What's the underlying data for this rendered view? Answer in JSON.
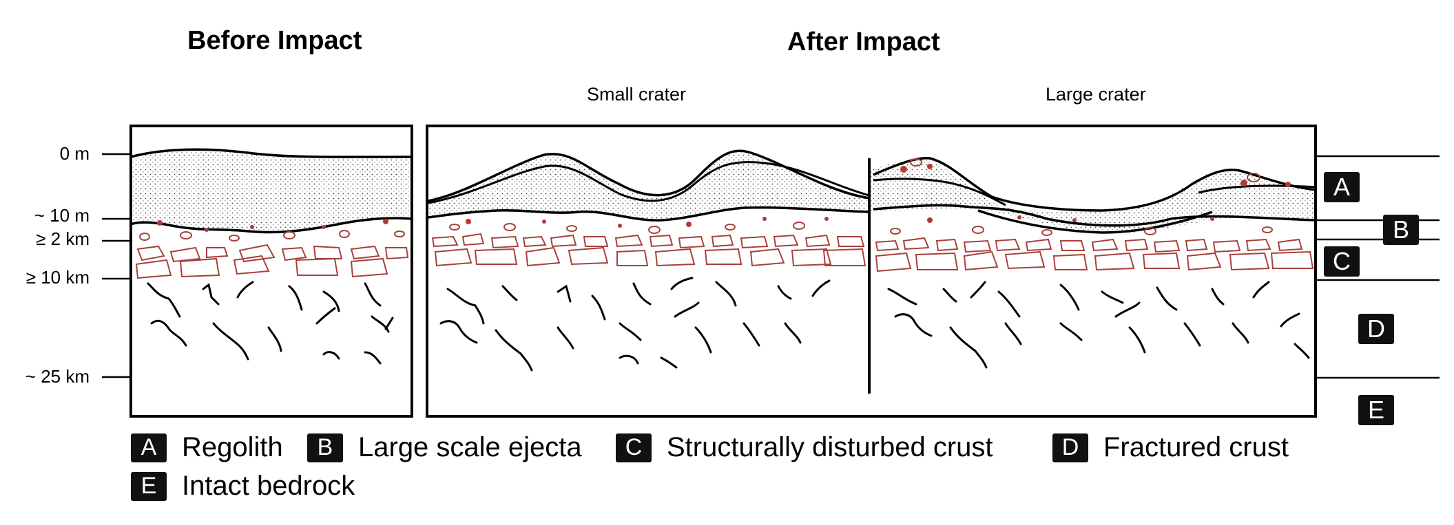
{
  "headings": {
    "before": "Before Impact",
    "after": "After Impact",
    "small_crater": "Small crater",
    "large_crater": "Large crater"
  },
  "depth_labels": [
    "0 m",
    "~ 10 m",
    "≥ 2 km",
    "≥ 10 km",
    "~ 25 km"
  ],
  "layer_badges": [
    "A",
    "B",
    "C",
    "D",
    "E"
  ],
  "legend": [
    {
      "letter": "A",
      "label": "Regolith"
    },
    {
      "letter": "B",
      "label": "Large scale ejecta"
    },
    {
      "letter": "C",
      "label": "Structurally disturbed crust"
    },
    {
      "letter": "D",
      "label": "Fractured crust"
    },
    {
      "letter": "E",
      "label": "Intact bedrock"
    }
  ],
  "colors": {
    "ejecta_outline": "#a8403a",
    "ejecta_fill": "#b33a34",
    "regolith_dots": "#555555"
  }
}
